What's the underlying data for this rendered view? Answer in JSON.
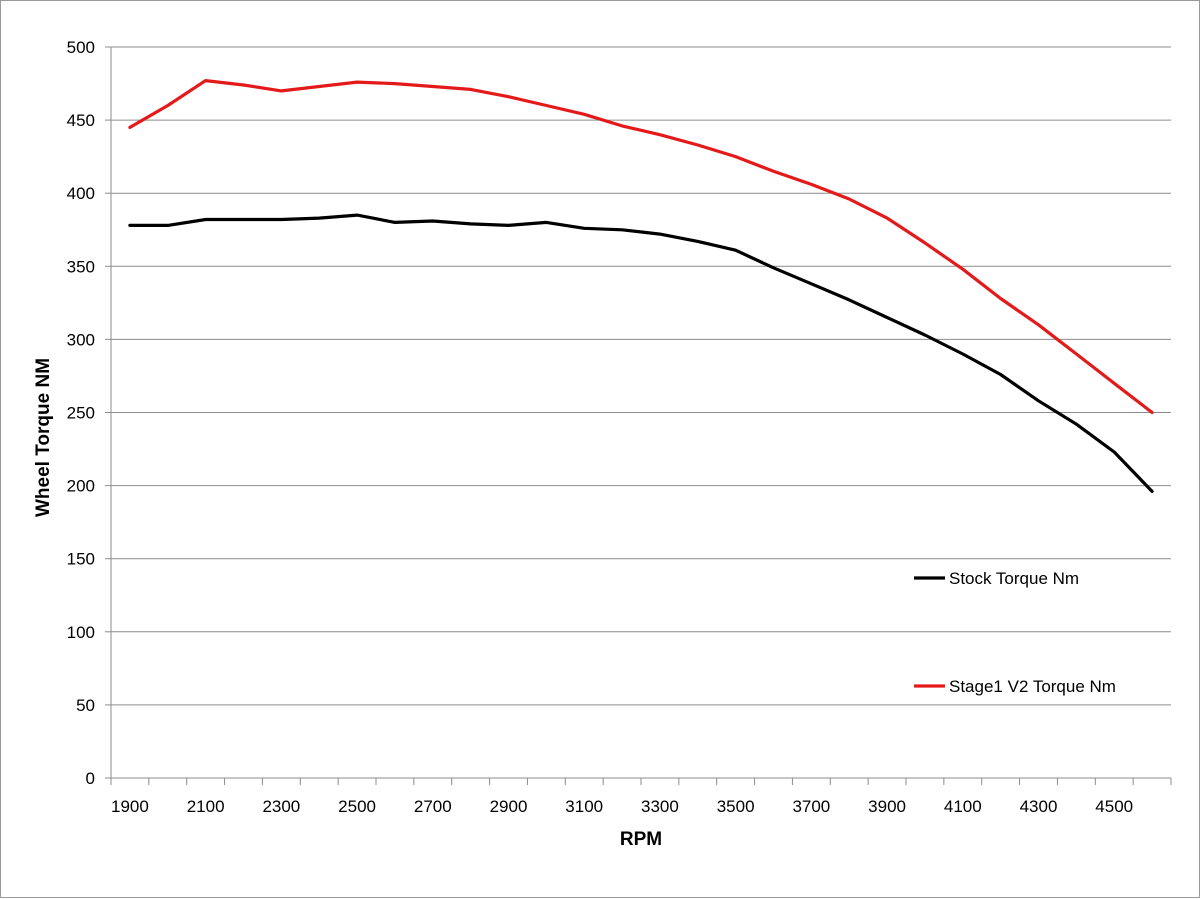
{
  "chart_data": {
    "type": "line",
    "title": "",
    "xlabel": "RPM",
    "ylabel": "Wheel Torque NM",
    "ylim": [
      0,
      500
    ],
    "yticks": [
      0,
      50,
      100,
      150,
      200,
      250,
      300,
      350,
      400,
      450,
      500
    ],
    "xticks": [
      1900,
      2100,
      2300,
      2500,
      2700,
      2900,
      3100,
      3300,
      3500,
      3700,
      3900,
      4100,
      4300,
      4500
    ],
    "grid": true,
    "legend_position": "right",
    "x": [
      1900,
      2000,
      2100,
      2200,
      2300,
      2400,
      2500,
      2600,
      2700,
      2800,
      2900,
      3000,
      3100,
      3200,
      3300,
      3400,
      3500,
      3600,
      3700,
      3800,
      3900,
      4000,
      4100,
      4200,
      4300,
      4400,
      4500,
      4600
    ],
    "series": [
      {
        "name": "Stock Torque Nm",
        "color": "#000000",
        "values": [
          378,
          378,
          382,
          382,
          382,
          383,
          385,
          380,
          381,
          379,
          378,
          380,
          376,
          375,
          372,
          367,
          361,
          349,
          338,
          327,
          315,
          303,
          290,
          276,
          258,
          242,
          223,
          196
        ]
      },
      {
        "name": "Stage1 V2 Torque Nm",
        "color": "#e41a1a",
        "values": [
          445,
          460,
          477,
          474,
          470,
          473,
          476,
          475,
          473,
          471,
          466,
          460,
          454,
          446,
          440,
          433,
          425,
          415,
          406,
          396,
          383,
          366,
          348,
          328,
          310,
          290,
          270,
          250
        ]
      }
    ]
  }
}
